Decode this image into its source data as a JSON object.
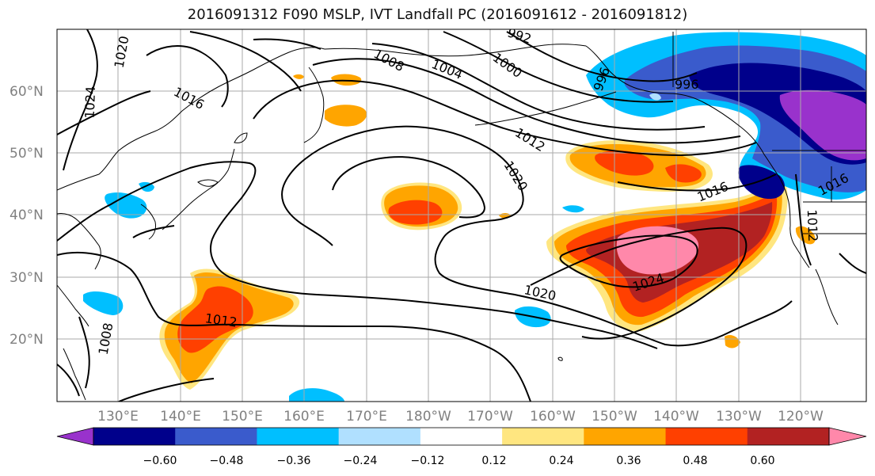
{
  "title": "2016091312 F090 MSLP, IVT Landfall PC (2016091612 - 2016091812)",
  "map": {
    "lat_labels": [
      "60°N",
      "50°N",
      "40°N",
      "30°N",
      "20°N"
    ],
    "lon_labels": [
      "130°E",
      "140°E",
      "150°E",
      "160°E",
      "170°E",
      "180°W",
      "170°W",
      "160°W",
      "150°W",
      "140°W",
      "130°W",
      "120°W"
    ],
    "isobar_labels": [
      "1020",
      "1024",
      "1016",
      "1008",
      "1004",
      "1000",
      "992",
      "996",
      "996",
      "1012",
      "1020",
      "1016",
      "1024",
      "1020",
      "1012",
      "1008",
      "1016",
      "1012"
    ]
  },
  "colorbar": {
    "ticks": [
      "−0.60",
      "−0.48",
      "−0.36",
      "−0.24",
      "−0.12",
      "0.12",
      "0.24",
      "0.36",
      "0.48",
      "0.60"
    ],
    "colors": [
      "#9932cc",
      "#00008b",
      "#3a5bcc",
      "#00bfff",
      "#b0e0ff",
      "#ffffff",
      "#ffe680",
      "#ffa500",
      "#ff4000",
      "#b22222",
      "#ff88aa"
    ]
  }
}
